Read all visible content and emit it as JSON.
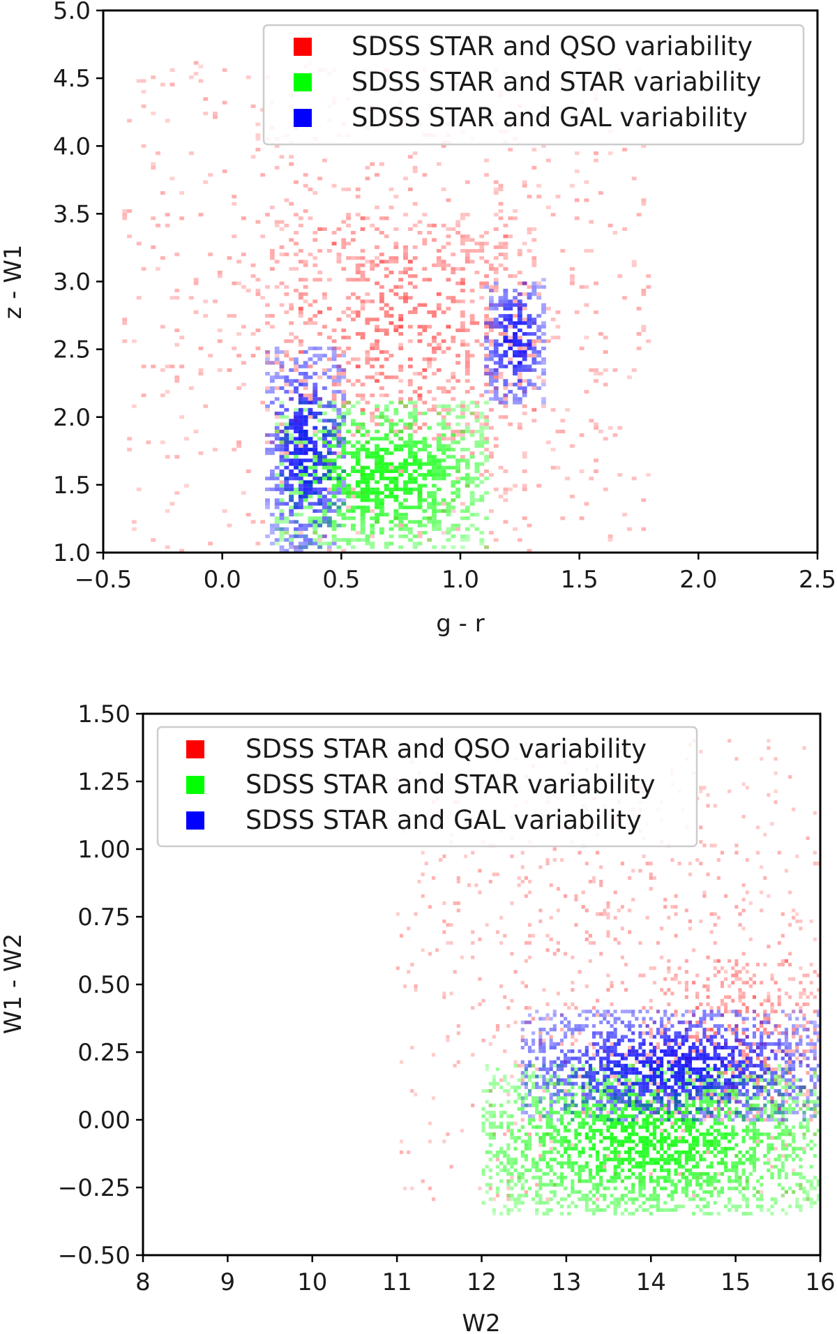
{
  "chart_data": [
    {
      "type": "heatmap",
      "xlabel": "g - r",
      "ylabel": "z - W1",
      "xlim": [
        -0.5,
        2.5
      ],
      "ylim": [
        1.0,
        5.0
      ],
      "x_ticks": [
        "−0.5",
        "0.0",
        "0.5",
        "1.0",
        "1.5",
        "2.0",
        "2.5"
      ],
      "x_tick_values": [
        -0.5,
        0.0,
        0.5,
        1.0,
        1.5,
        2.0,
        2.5
      ],
      "y_ticks": [
        "1.0",
        "1.5",
        "2.0",
        "2.5",
        "3.0",
        "3.5",
        "4.0",
        "4.5",
        "5.0"
      ],
      "y_tick_values": [
        1.0,
        1.5,
        2.0,
        2.5,
        3.0,
        3.5,
        4.0,
        4.5,
        5.0
      ],
      "legend_position": "top-right",
      "grid": false,
      "series": [
        {
          "name": "SDSS STAR and QSO variability",
          "color": "#ff0000",
          "density_regions": [
            {
              "x_range": [
                -0.4,
                1.8
              ],
              "y_range": [
                1.0,
                4.6
              ],
              "level": "sparse"
            },
            {
              "x_range": [
                0.2,
                1.3
              ],
              "y_range": [
                1.8,
                3.5
              ],
              "level": "medium"
            }
          ]
        },
        {
          "name": "SDSS STAR and STAR variability",
          "color": "#00ff00",
          "density_regions": [
            {
              "x_range": [
                0.22,
                1.1
              ],
              "y_range": [
                1.05,
                2.1
              ],
              "level": "dense"
            }
          ]
        },
        {
          "name": "SDSS STAR and GAL variability",
          "color": "#0000ff",
          "density_regions": [
            {
              "x_range": [
                0.2,
                0.5
              ],
              "y_range": [
                1.0,
                2.5
              ],
              "level": "dense"
            },
            {
              "x_range": [
                1.1,
                1.35
              ],
              "y_range": [
                2.1,
                3.0
              ],
              "level": "dense"
            }
          ]
        }
      ]
    },
    {
      "type": "heatmap",
      "xlabel": "W2",
      "ylabel": "W1 - W2",
      "xlim": [
        8,
        16
      ],
      "ylim": [
        -0.5,
        1.5
      ],
      "x_ticks": [
        "8",
        "9",
        "10",
        "11",
        "12",
        "13",
        "14",
        "15",
        "16"
      ],
      "x_tick_values": [
        8,
        9,
        10,
        11,
        12,
        13,
        14,
        15,
        16
      ],
      "y_ticks": [
        "−0.50",
        "−0.25",
        "0.00",
        "0.25",
        "0.50",
        "0.75",
        "1.00",
        "1.25",
        "1.50"
      ],
      "y_tick_values": [
        -0.5,
        -0.25,
        0.0,
        0.25,
        0.5,
        0.75,
        1.0,
        1.25,
        1.5
      ],
      "legend_position": "top-left",
      "grid": false,
      "series": [
        {
          "name": "SDSS STAR and QSO variability",
          "color": "#ff0000",
          "density_regions": [
            {
              "x_range": [
                11,
                16
              ],
              "y_range": [
                -0.3,
                1.4
              ],
              "level": "sparse"
            },
            {
              "x_range": [
                14,
                16
              ],
              "y_range": [
                0.0,
                0.6
              ],
              "level": "medium"
            }
          ]
        },
        {
          "name": "SDSS STAR and STAR variability",
          "color": "#00ff00",
          "density_regions": [
            {
              "x_range": [
                12,
                16
              ],
              "y_range": [
                -0.35,
                0.2
              ],
              "level": "dense"
            }
          ]
        },
        {
          "name": "SDSS STAR and GAL variability",
          "color": "#0000ff",
          "density_regions": [
            {
              "x_range": [
                12.5,
                16
              ],
              "y_range": [
                0.0,
                0.4
              ],
              "level": "dense"
            }
          ]
        }
      ]
    }
  ]
}
